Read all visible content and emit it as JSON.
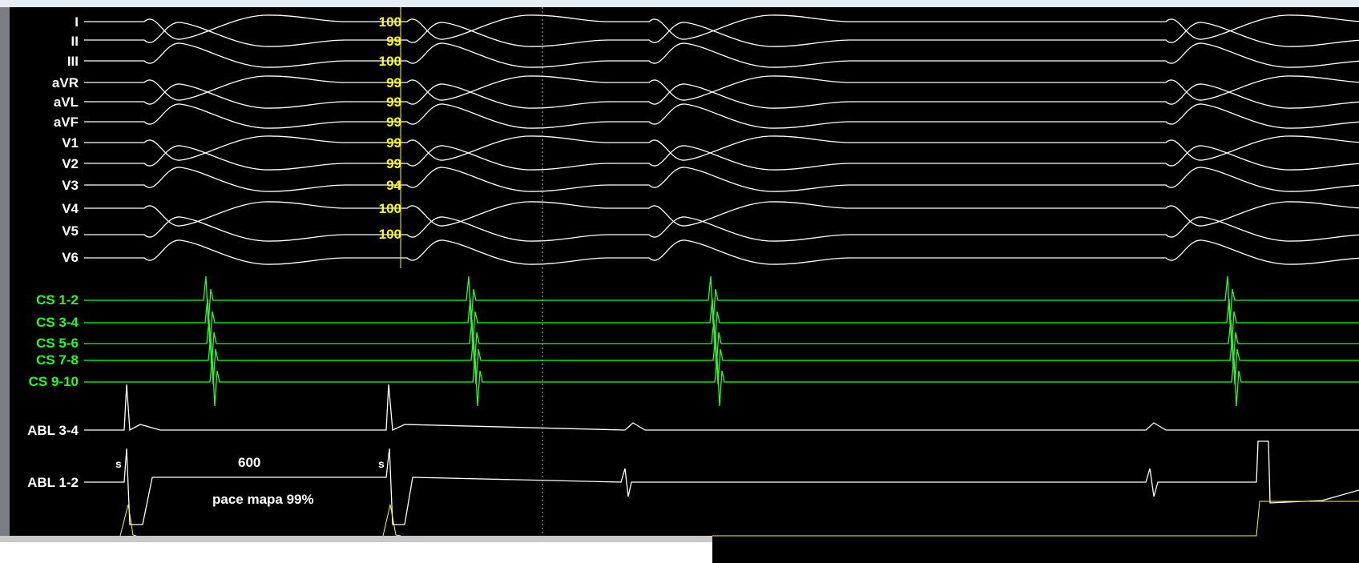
{
  "channels": {
    "ecg": [
      "I",
      "II",
      "III",
      "aVR",
      "aVL",
      "aVF",
      "V1",
      "V2",
      "V3",
      "V4",
      "V5",
      "V6"
    ],
    "cs": [
      "CS 1-2",
      "CS 3-4",
      "CS 5-6",
      "CS 7-8",
      "CS 9-10"
    ],
    "abl": [
      "ABL 3-4",
      "ABL 1-2"
    ]
  },
  "match_scores": [
    "100",
    "99",
    "100",
    "99",
    "99",
    "99",
    "99",
    "99",
    "94",
    "100",
    "100"
  ],
  "annotations": {
    "cycle_length": "600",
    "note": "pace mapa 99%",
    "stim_marker_1": "s",
    "stim_marker_2": "s"
  },
  "colors": {
    "ecg_trace": "#ffffff",
    "cs_trace": "#20ff20",
    "score_text": "#ffff00",
    "background": "#000000"
  }
}
